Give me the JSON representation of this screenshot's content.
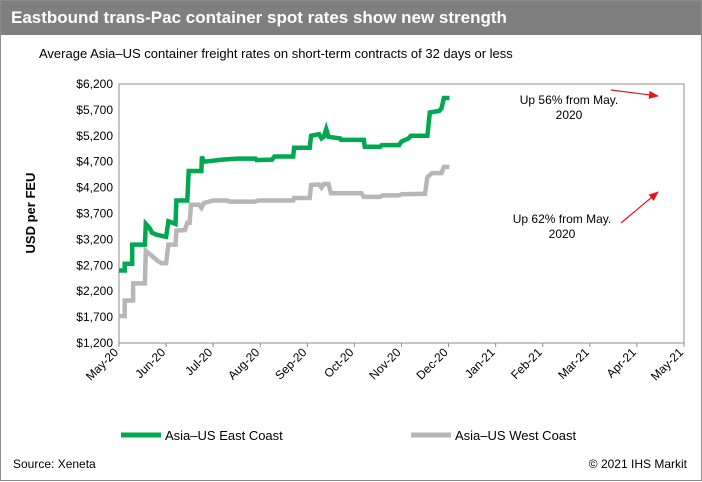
{
  "header": {
    "title": "Eastbound trans-Pac container spot rates show new strength"
  },
  "footer": {
    "source": "Source: Xeneta",
    "copyright": "© 2021 IHS Markit"
  },
  "colors": {
    "east": "#00a84f",
    "west": "#b7b7b7",
    "arrow": "#e8141b",
    "title_bg": "#7f7f7f"
  },
  "chart_data": {
    "type": "line",
    "subtitle": "Average Asia–US container freight rates on short-term contracts of 32 days or less",
    "ylabel": "USD per FEU",
    "xlabel": "",
    "ylim": [
      1200,
      6200
    ],
    "y_ticks": [
      "$1,200",
      "$1,700",
      "$2,200",
      "$2,700",
      "$3,200",
      "$3,700",
      "$4,200",
      "$4,700",
      "$5,200",
      "$5,700",
      "$6,200"
    ],
    "y_tick_values": [
      1200,
      1700,
      2200,
      2700,
      3200,
      3700,
      4200,
      4700,
      5200,
      5700,
      6200
    ],
    "x_ticks": [
      "May-20",
      "Jun-20",
      "Jul-20",
      "Aug-20",
      "Sep-20",
      "Oct-20",
      "Nov-20",
      "Dec-20",
      "Jan-21",
      "Feb-21",
      "Mar-21",
      "Apr-21",
      "May-21"
    ],
    "grid": false,
    "legend_position": "bottom",
    "series": [
      {
        "name": "Asia–US East Coast",
        "color": "#00a84f",
        "points": [
          [
            0,
            2600
          ],
          [
            0.12,
            2600
          ],
          [
            0.12,
            2730
          ],
          [
            0.28,
            2730
          ],
          [
            0.28,
            3100
          ],
          [
            0.55,
            3100
          ],
          [
            0.57,
            3500
          ],
          [
            0.65,
            3420
          ],
          [
            0.7,
            3330
          ],
          [
            0.8,
            3290
          ],
          [
            0.9,
            3270
          ],
          [
            1.0,
            3250
          ],
          [
            1.05,
            3550
          ],
          [
            1.2,
            3500
          ],
          [
            1.22,
            3950
          ],
          [
            1.45,
            3950
          ],
          [
            1.48,
            4520
          ],
          [
            1.75,
            4520
          ],
          [
            1.76,
            4800
          ],
          [
            1.8,
            4700
          ],
          [
            2.2,
            4740
          ],
          [
            2.5,
            4760
          ],
          [
            2.9,
            4760
          ],
          [
            2.92,
            4730
          ],
          [
            3.25,
            4740
          ],
          [
            3.3,
            4800
          ],
          [
            3.7,
            4800
          ],
          [
            3.72,
            4970
          ],
          [
            4.05,
            4970
          ],
          [
            4.08,
            5200
          ],
          [
            4.25,
            5230
          ],
          [
            4.3,
            5150
          ],
          [
            4.35,
            5180
          ],
          [
            4.4,
            5330
          ],
          [
            4.45,
            5180
          ],
          [
            4.7,
            5150
          ],
          [
            4.72,
            5120
          ],
          [
            5.2,
            5120
          ],
          [
            5.22,
            4990
          ],
          [
            5.55,
            4990
          ],
          [
            5.58,
            5020
          ],
          [
            5.95,
            5020
          ],
          [
            6.0,
            5090
          ],
          [
            6.15,
            5150
          ],
          [
            6.2,
            5200
          ],
          [
            6.55,
            5200
          ],
          [
            6.6,
            5650
          ],
          [
            6.8,
            5680
          ],
          [
            6.85,
            5730
          ],
          [
            6.9,
            5930
          ],
          [
            7.02,
            5930
          ]
        ]
      },
      {
        "name": "Asia–US West Coast",
        "color": "#b7b7b7",
        "points": [
          [
            0,
            1720
          ],
          [
            0.12,
            1720
          ],
          [
            0.12,
            2020
          ],
          [
            0.3,
            2020
          ],
          [
            0.3,
            2350
          ],
          [
            0.55,
            2350
          ],
          [
            0.57,
            2980
          ],
          [
            0.7,
            2880
          ],
          [
            0.8,
            2800
          ],
          [
            0.9,
            2740
          ],
          [
            1.0,
            2740
          ],
          [
            1.05,
            3100
          ],
          [
            1.2,
            3100
          ],
          [
            1.22,
            3370
          ],
          [
            1.4,
            3380
          ],
          [
            1.45,
            3520
          ],
          [
            1.5,
            3520
          ],
          [
            1.53,
            3870
          ],
          [
            1.7,
            3870
          ],
          [
            1.75,
            3810
          ],
          [
            1.8,
            3900
          ],
          [
            2.0,
            3950
          ],
          [
            2.3,
            3950
          ],
          [
            2.35,
            3930
          ],
          [
            2.9,
            3930
          ],
          [
            2.95,
            3950
          ],
          [
            3.7,
            3950
          ],
          [
            3.72,
            4000
          ],
          [
            4.05,
            4000
          ],
          [
            4.08,
            4250
          ],
          [
            4.25,
            4260
          ],
          [
            4.3,
            4200
          ],
          [
            4.35,
            4270
          ],
          [
            4.45,
            4270
          ],
          [
            4.5,
            4090
          ],
          [
            5.15,
            4090
          ],
          [
            5.2,
            4020
          ],
          [
            5.55,
            4020
          ],
          [
            5.6,
            4050
          ],
          [
            5.95,
            4050
          ],
          [
            6.0,
            4070
          ],
          [
            6.5,
            4080
          ],
          [
            6.55,
            4400
          ],
          [
            6.65,
            4480
          ],
          [
            6.85,
            4480
          ],
          [
            6.9,
            4600
          ],
          [
            7.02,
            4600
          ]
        ]
      }
    ],
    "annotations": [
      {
        "text_line1": "Up 56% from May.",
        "text_line2": "2020"
      },
      {
        "text_line1": "Up 62% from May.",
        "text_line2": "2020"
      }
    ]
  }
}
